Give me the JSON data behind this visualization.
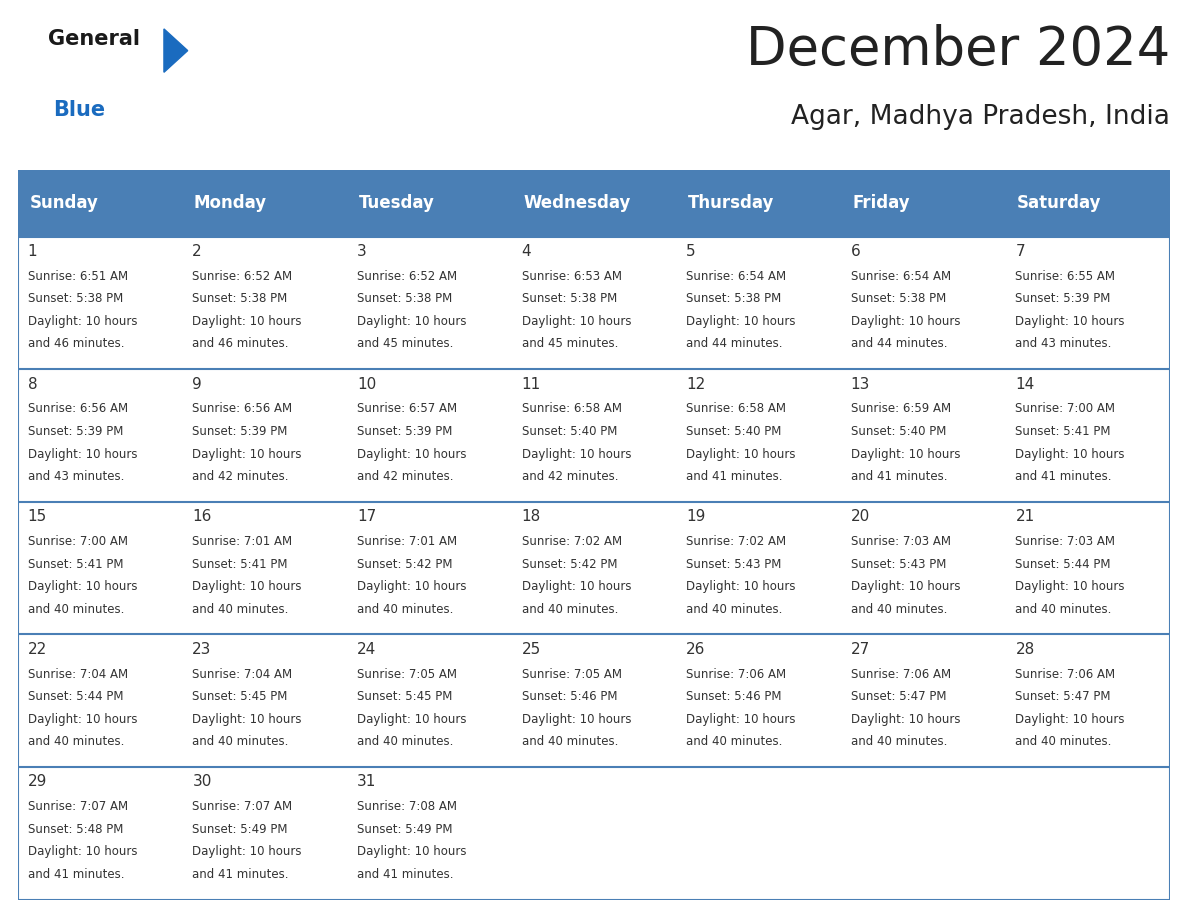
{
  "title": "December 2024",
  "subtitle": "Agar, Madhya Pradesh, India",
  "header_color": "#4a7fb5",
  "header_text_color": "#ffffff",
  "days_of_week": [
    "Sunday",
    "Monday",
    "Tuesday",
    "Wednesday",
    "Thursday",
    "Friday",
    "Saturday"
  ],
  "background_color": "#ffffff",
  "line_color": "#4a7fb5",
  "text_color": "#222222",
  "cell_text_color": "#333333",
  "logo_general_color": "#1a1a1a",
  "logo_blue_color": "#1a6bbf",
  "logo_triangle_color": "#1a6bbf",
  "calendar_data": [
    [
      {
        "day": 1,
        "sunrise": "6:51 AM",
        "sunset": "5:38 PM",
        "daylight": "10 hours and 46 minutes."
      },
      {
        "day": 2,
        "sunrise": "6:52 AM",
        "sunset": "5:38 PM",
        "daylight": "10 hours and 46 minutes."
      },
      {
        "day": 3,
        "sunrise": "6:52 AM",
        "sunset": "5:38 PM",
        "daylight": "10 hours and 45 minutes."
      },
      {
        "day": 4,
        "sunrise": "6:53 AM",
        "sunset": "5:38 PM",
        "daylight": "10 hours and 45 minutes."
      },
      {
        "day": 5,
        "sunrise": "6:54 AM",
        "sunset": "5:38 PM",
        "daylight": "10 hours and 44 minutes."
      },
      {
        "day": 6,
        "sunrise": "6:54 AM",
        "sunset": "5:38 PM",
        "daylight": "10 hours and 44 minutes."
      },
      {
        "day": 7,
        "sunrise": "6:55 AM",
        "sunset": "5:39 PM",
        "daylight": "10 hours and 43 minutes."
      }
    ],
    [
      {
        "day": 8,
        "sunrise": "6:56 AM",
        "sunset": "5:39 PM",
        "daylight": "10 hours and 43 minutes."
      },
      {
        "day": 9,
        "sunrise": "6:56 AM",
        "sunset": "5:39 PM",
        "daylight": "10 hours and 42 minutes."
      },
      {
        "day": 10,
        "sunrise": "6:57 AM",
        "sunset": "5:39 PM",
        "daylight": "10 hours and 42 minutes."
      },
      {
        "day": 11,
        "sunrise": "6:58 AM",
        "sunset": "5:40 PM",
        "daylight": "10 hours and 42 minutes."
      },
      {
        "day": 12,
        "sunrise": "6:58 AM",
        "sunset": "5:40 PM",
        "daylight": "10 hours and 41 minutes."
      },
      {
        "day": 13,
        "sunrise": "6:59 AM",
        "sunset": "5:40 PM",
        "daylight": "10 hours and 41 minutes."
      },
      {
        "day": 14,
        "sunrise": "7:00 AM",
        "sunset": "5:41 PM",
        "daylight": "10 hours and 41 minutes."
      }
    ],
    [
      {
        "day": 15,
        "sunrise": "7:00 AM",
        "sunset": "5:41 PM",
        "daylight": "10 hours and 40 minutes."
      },
      {
        "day": 16,
        "sunrise": "7:01 AM",
        "sunset": "5:41 PM",
        "daylight": "10 hours and 40 minutes."
      },
      {
        "day": 17,
        "sunrise": "7:01 AM",
        "sunset": "5:42 PM",
        "daylight": "10 hours and 40 minutes."
      },
      {
        "day": 18,
        "sunrise": "7:02 AM",
        "sunset": "5:42 PM",
        "daylight": "10 hours and 40 minutes."
      },
      {
        "day": 19,
        "sunrise": "7:02 AM",
        "sunset": "5:43 PM",
        "daylight": "10 hours and 40 minutes."
      },
      {
        "day": 20,
        "sunrise": "7:03 AM",
        "sunset": "5:43 PM",
        "daylight": "10 hours and 40 minutes."
      },
      {
        "day": 21,
        "sunrise": "7:03 AM",
        "sunset": "5:44 PM",
        "daylight": "10 hours and 40 minutes."
      }
    ],
    [
      {
        "day": 22,
        "sunrise": "7:04 AM",
        "sunset": "5:44 PM",
        "daylight": "10 hours and 40 minutes."
      },
      {
        "day": 23,
        "sunrise": "7:04 AM",
        "sunset": "5:45 PM",
        "daylight": "10 hours and 40 minutes."
      },
      {
        "day": 24,
        "sunrise": "7:05 AM",
        "sunset": "5:45 PM",
        "daylight": "10 hours and 40 minutes."
      },
      {
        "day": 25,
        "sunrise": "7:05 AM",
        "sunset": "5:46 PM",
        "daylight": "10 hours and 40 minutes."
      },
      {
        "day": 26,
        "sunrise": "7:06 AM",
        "sunset": "5:46 PM",
        "daylight": "10 hours and 40 minutes."
      },
      {
        "day": 27,
        "sunrise": "7:06 AM",
        "sunset": "5:47 PM",
        "daylight": "10 hours and 40 minutes."
      },
      {
        "day": 28,
        "sunrise": "7:06 AM",
        "sunset": "5:47 PM",
        "daylight": "10 hours and 40 minutes."
      }
    ],
    [
      {
        "day": 29,
        "sunrise": "7:07 AM",
        "sunset": "5:48 PM",
        "daylight": "10 hours and 41 minutes."
      },
      {
        "day": 30,
        "sunrise": "7:07 AM",
        "sunset": "5:49 PM",
        "daylight": "10 hours and 41 minutes."
      },
      {
        "day": 31,
        "sunrise": "7:08 AM",
        "sunset": "5:49 PM",
        "daylight": "10 hours and 41 minutes."
      },
      null,
      null,
      null,
      null
    ]
  ],
  "title_fontsize": 38,
  "subtitle_fontsize": 19,
  "header_fontsize": 12,
  "day_number_fontsize": 11,
  "cell_text_fontsize": 8.5,
  "logo_general_fontsize": 15,
  "logo_blue_fontsize": 15
}
